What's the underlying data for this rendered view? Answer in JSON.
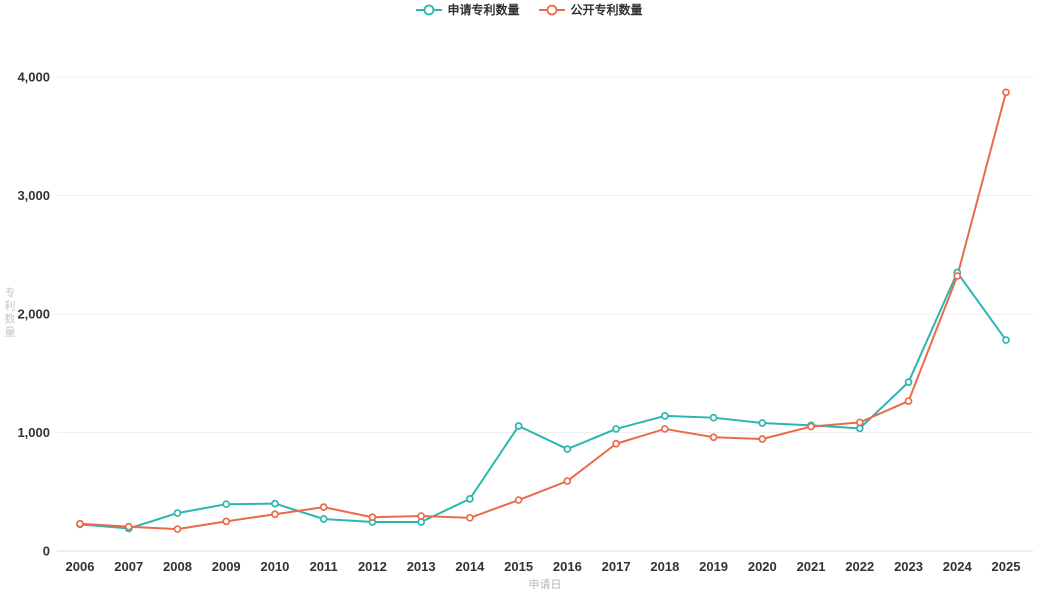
{
  "legend": {
    "items": [
      {
        "label": "申请专利数量",
        "color": "#2bb6b1"
      },
      {
        "label": "公开专利数量",
        "color": "#ea6a4b"
      }
    ]
  },
  "axes": {
    "y_label": "专利数量",
    "x_label": "申请日",
    "y_ticks": [
      {
        "value": 0,
        "label": "0"
      },
      {
        "value": 1000,
        "label": "1,000"
      },
      {
        "value": 2000,
        "label": "2,000"
      },
      {
        "value": 3000,
        "label": "3,000"
      },
      {
        "value": 4000,
        "label": "4,000"
      }
    ]
  },
  "chart_data": {
    "type": "line",
    "title": "",
    "x": [
      2006,
      2007,
      2008,
      2009,
      2010,
      2011,
      2012,
      2013,
      2014,
      2015,
      2016,
      2017,
      2018,
      2019,
      2020,
      2021,
      2022,
      2023,
      2024,
      2025
    ],
    "series": [
      {
        "name": "申请专利数量",
        "color": "#2bb6b1",
        "values": [
          225,
          190,
          320,
          395,
          400,
          270,
          245,
          245,
          440,
          1055,
          860,
          1030,
          1140,
          1125,
          1080,
          1060,
          1035,
          1425,
          2350,
          1780
        ]
      },
      {
        "name": "公开专利数量",
        "color": "#ea6a4b",
        "values": [
          230,
          205,
          185,
          250,
          310,
          370,
          285,
          295,
          280,
          430,
          590,
          905,
          1030,
          960,
          945,
          1050,
          1085,
          1265,
          2320,
          3870
        ]
      }
    ],
    "xlabel": "申请日",
    "ylabel": "专利数量",
    "ylim": [
      0,
      4000
    ],
    "grid": true,
    "legend_position": "top",
    "marker": "hollow-circle"
  }
}
